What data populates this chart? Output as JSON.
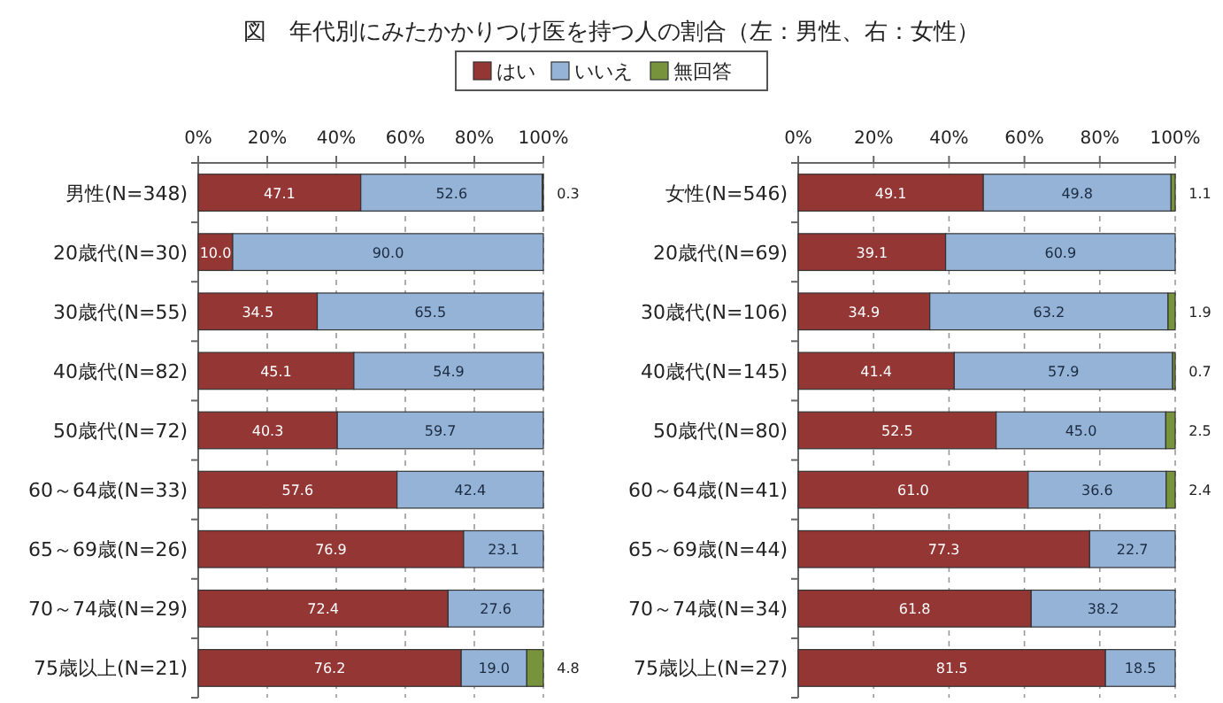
{
  "chart_data": [
    {
      "type": "bar",
      "orientation": "horizontal",
      "stacked": true,
      "title": "図　年代別にみたかかりつけ医を持つ人の割合（左：男性、右：女性）",
      "legend": "top",
      "grid": "x",
      "categories": [
        "男性(N=348)",
        "20歳代(N=30)",
        "30歳代(N=55)",
        "40歳代(N=82)",
        "50歳代(N=72)",
        "60～64歳(N=33)",
        "65～69歳(N=26)",
        "70～74歳(N=29)",
        "75歳以上(N=21)"
      ],
      "xlim": [
        0,
        100
      ],
      "xticks": [
        {
          "value": 0,
          "label": "0%"
        },
        {
          "value": 20,
          "label": "20%"
        },
        {
          "value": 40,
          "label": "40%"
        },
        {
          "value": 60,
          "label": "60%"
        },
        {
          "value": 80,
          "label": "80%"
        },
        {
          "value": 100,
          "label": "100%"
        }
      ],
      "series": [
        {
          "name": "はい",
          "color": "#943634",
          "values": [
            47.1,
            10.0,
            34.5,
            45.1,
            40.3,
            57.6,
            76.9,
            72.4,
            76.2
          ],
          "value_labels": [
            "47.1",
            "10.0",
            "34.5",
            "45.1",
            "40.3",
            "57.6",
            "76.9",
            "72.4",
            "76.2"
          ]
        },
        {
          "name": "いいえ",
          "color": "#95b3d7",
          "values": [
            52.6,
            90.0,
            65.5,
            54.9,
            59.7,
            42.4,
            23.1,
            27.6,
            19.0
          ],
          "value_labels": [
            "52.6",
            "90.0",
            "65.5",
            "54.9",
            "59.7",
            "42.4",
            "23.1",
            "27.6",
            "19.0"
          ]
        },
        {
          "name": "無回答",
          "color": "#77933c",
          "values": [
            0.3,
            0,
            0,
            0,
            0,
            0,
            0,
            0,
            4.8
          ],
          "value_labels": [
            "0.3",
            null,
            null,
            null,
            null,
            null,
            null,
            null,
            "4.8"
          ]
        }
      ]
    },
    {
      "type": "bar",
      "orientation": "horizontal",
      "stacked": true,
      "grid": "x",
      "categories": [
        "女性(N=546)",
        "20歳代(N=69)",
        "30歳代(N=106)",
        "40歳代(N=145)",
        "50歳代(N=80)",
        "60～64歳(N=41)",
        "65～69歳(N=44)",
        "70～74歳(N=34)",
        "75歳以上(N=27)"
      ],
      "xlim": [
        0,
        100
      ],
      "xticks": [
        {
          "value": 0,
          "label": "0%"
        },
        {
          "value": 20,
          "label": "20%"
        },
        {
          "value": 40,
          "label": "40%"
        },
        {
          "value": 60,
          "label": "60%"
        },
        {
          "value": 80,
          "label": "80%"
        },
        {
          "value": 100,
          "label": "100%"
        }
      ],
      "series": [
        {
          "color": "#943634",
          "values": [
            49.1,
            39.1,
            34.9,
            41.4,
            52.5,
            61.0,
            77.3,
            61.8,
            81.5
          ],
          "value_labels": [
            "49.1",
            "39.1",
            "34.9",
            "41.4",
            "52.5",
            "61.0",
            "77.3",
            "61.8",
            "81.5"
          ]
        },
        {
          "color": "#95b3d7",
          "values": [
            49.8,
            60.9,
            63.2,
            57.9,
            45.0,
            36.6,
            22.7,
            38.2,
            18.5
          ],
          "value_labels": [
            "49.8",
            "60.9",
            "63.2",
            "57.9",
            "45.0",
            "36.6",
            "22.7",
            "38.2",
            "18.5"
          ]
        },
        {
          "color": "#77933c",
          "values": [
            1.1,
            0,
            1.9,
            0.7,
            2.5,
            2.4,
            0,
            0,
            0
          ],
          "value_labels": [
            "1.1",
            null,
            "1.9",
            "0.7",
            "2.5",
            "2.4",
            null,
            null,
            null
          ]
        }
      ]
    }
  ]
}
